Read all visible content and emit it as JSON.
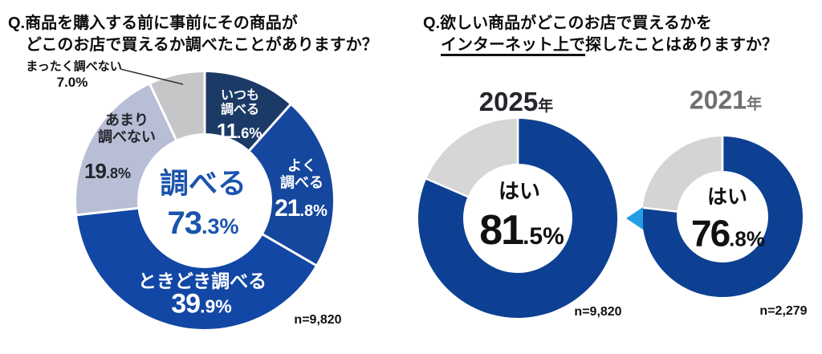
{
  "chart_data": [
    {
      "type": "pie",
      "title": "Q.商品を購入する前に事前にその商品が どこのお店で買えるか調べたことがありますか？",
      "categories": [
        "いつも調べる",
        "よく調べる",
        "ときどき調べる",
        "あまり調べない",
        "まったく調べない"
      ],
      "values": [
        11.6,
        21.8,
        39.9,
        19.8,
        7.0
      ],
      "center_summary": {
        "label": "調べる",
        "value": 73.3
      },
      "sample_size": "n=9,820",
      "donut": true,
      "start_angle": "top",
      "direction": "clockwise"
    },
    {
      "type": "pie",
      "title": "Q.欲しい商品がどこのお店で買えるかを インターネット上で探したことはありますか？",
      "series": [
        {
          "name": "2025年",
          "categories": [
            "はい"
          ],
          "values": [
            81.5
          ],
          "remainder": 18.5,
          "sample_size": "n=9,820"
        },
        {
          "name": "2021年",
          "categories": [
            "はい"
          ],
          "values": [
            76.8
          ],
          "remainder": 23.2,
          "sample_size": "n=2,279"
        }
      ],
      "donut": true,
      "start_angle": "top",
      "direction": "clockwise"
    }
  ],
  "left_chart": {
    "question_line1": "Q.商品を購入する前に事前にその商品が",
    "question_line2": "どこのお店で買えるか調べたことがありますか？",
    "segments": [
      {
        "label": "いつも\n調べる",
        "value": 11.6,
        "pct_int": "11",
        "pct_frac": ".6%",
        "color": "#1c3a66"
      },
      {
        "label": "よく\n調べる",
        "value": 21.8,
        "pct_int": "21",
        "pct_frac": ".8%",
        "color": "#16479e"
      },
      {
        "label": "ときどき調べる",
        "value": 39.9,
        "pct_int": "39",
        "pct_frac": ".9%",
        "color": "#1247a5"
      },
      {
        "label": "あまり\n調べない",
        "value": 19.8,
        "pct_int": "19",
        "pct_frac": ".8%",
        "color": "#b7bed5"
      },
      {
        "label": "まったく調べない",
        "value": 7.0,
        "pct_int": "7",
        "pct_frac": ".0%",
        "color": "#c5c6c8"
      }
    ],
    "center": {
      "label": "調べる",
      "pct_int": "73",
      "pct_frac": ".3%",
      "text_color": "#1b54ad"
    },
    "sample": "n=9,820"
  },
  "right_chart": {
    "question_line1": "Q.欲しい商品がどこのお店で買えるかを",
    "question_line2_underline": "インターネット上で",
    "question_line2_rest": "探したことはありますか？",
    "arrow_color": "#229de6",
    "y2025": {
      "title_year": "2025",
      "title_suffix": "年",
      "center_label": "はい",
      "pct_int": "81",
      "pct_frac": ".5%",
      "sample": "n=9,820",
      "segments": [
        {
          "label": "はい",
          "value": 81.5,
          "color": "#0d4092"
        },
        {
          "label": "",
          "value": 18.5,
          "color": "#d6d6d6"
        }
      ]
    },
    "y2021": {
      "title_year": "2021",
      "title_suffix": "年",
      "center_label": "はい",
      "pct_int": "76",
      "pct_frac": ".8%",
      "sample": "n=2,279",
      "segments": [
        {
          "label": "はい",
          "value": 76.8,
          "color": "#0d4092"
        },
        {
          "label": "",
          "value": 23.2,
          "color": "#d4d4d4"
        }
      ]
    }
  }
}
